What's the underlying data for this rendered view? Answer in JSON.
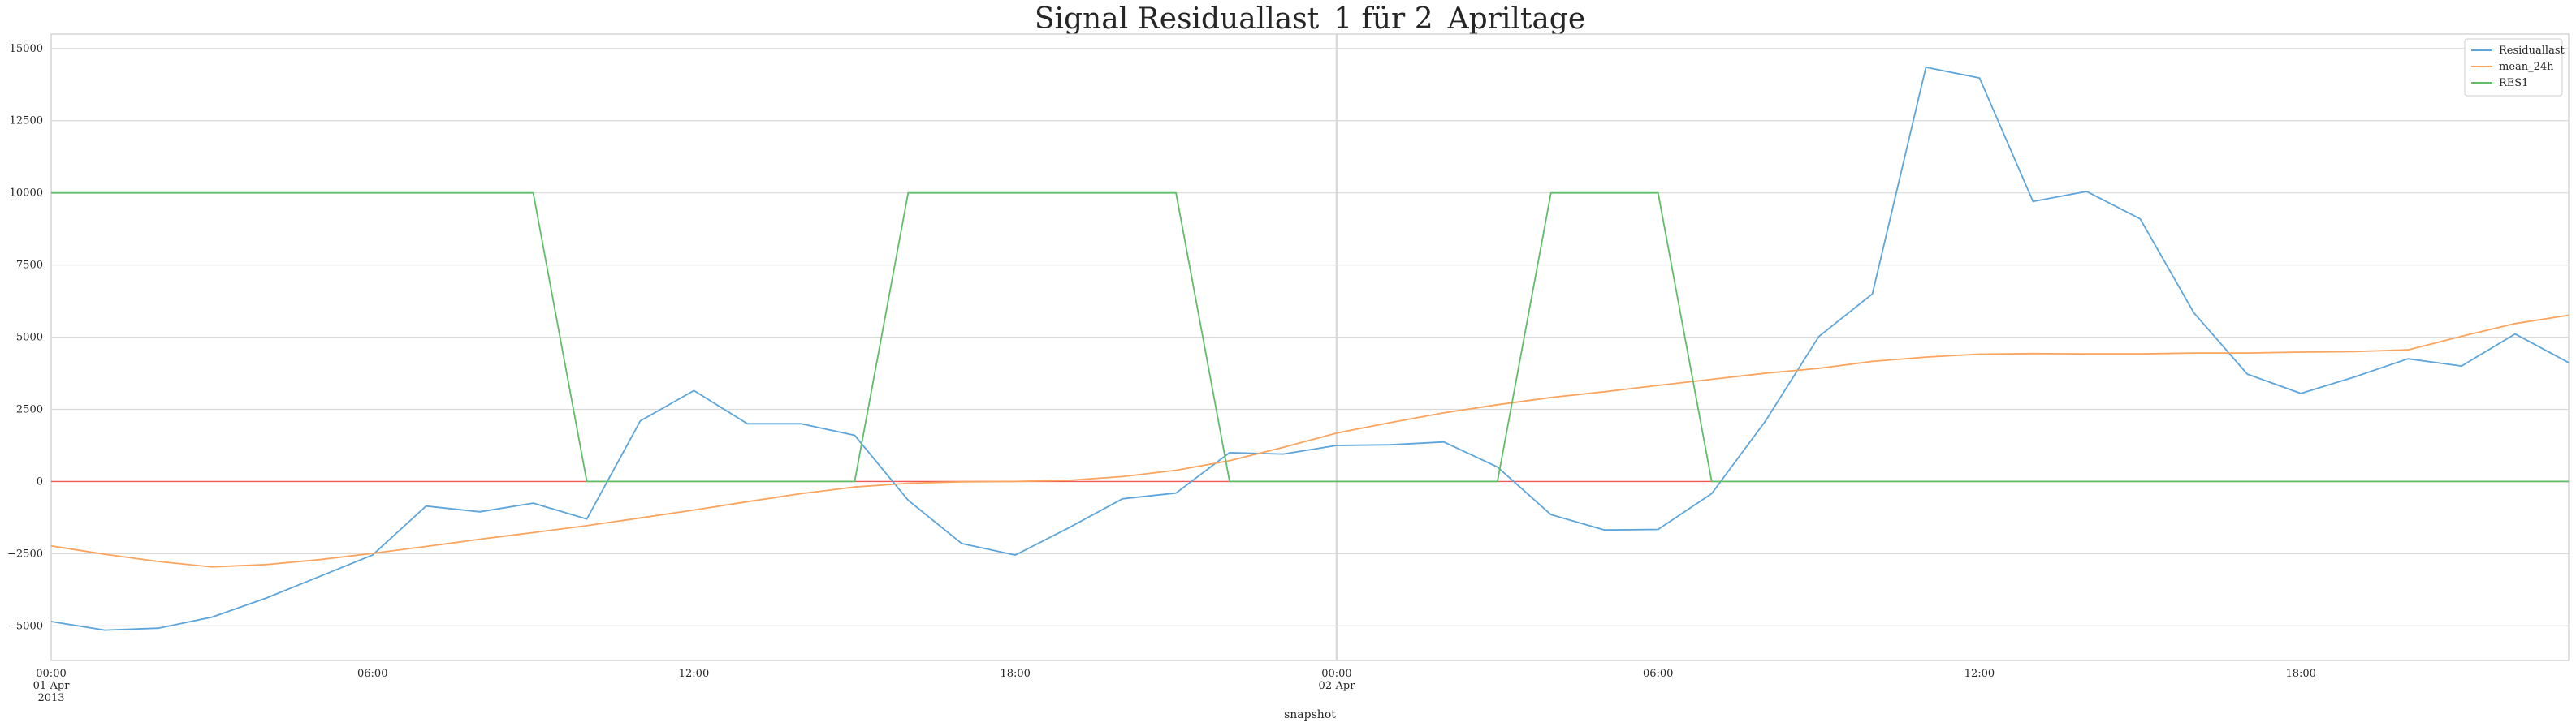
{
  "chart_data": {
    "type": "line",
    "title": "Signal Residuallast_1 für 2_Apriltage",
    "xlabel": "snapshot",
    "ylabel": "",
    "x": [
      "2013-04-01 00:00",
      "2013-04-01 01:00",
      "2013-04-01 02:00",
      "2013-04-01 03:00",
      "2013-04-01 04:00",
      "2013-04-01 05:00",
      "2013-04-01 06:00",
      "2013-04-01 07:00",
      "2013-04-01 08:00",
      "2013-04-01 09:00",
      "2013-04-01 10:00",
      "2013-04-01 11:00",
      "2013-04-01 12:00",
      "2013-04-01 13:00",
      "2013-04-01 14:00",
      "2013-04-01 15:00",
      "2013-04-01 16:00",
      "2013-04-01 17:00",
      "2013-04-01 18:00",
      "2013-04-01 19:00",
      "2013-04-01 20:00",
      "2013-04-01 21:00",
      "2013-04-01 22:00",
      "2013-04-01 23:00",
      "2013-04-02 00:00",
      "2013-04-02 01:00",
      "2013-04-02 02:00",
      "2013-04-02 03:00",
      "2013-04-02 04:00",
      "2013-04-02 05:00",
      "2013-04-02 06:00",
      "2013-04-02 07:00",
      "2013-04-02 08:00",
      "2013-04-02 09:00",
      "2013-04-02 10:00",
      "2013-04-02 11:00",
      "2013-04-02 12:00",
      "2013-04-02 13:00",
      "2013-04-02 14:00",
      "2013-04-02 15:00",
      "2013-04-02 16:00",
      "2013-04-02 17:00",
      "2013-04-02 18:00",
      "2013-04-02 19:00",
      "2013-04-02 20:00",
      "2013-04-02 21:00",
      "2013-04-02 22:00",
      "2013-04-02 23:00"
    ],
    "xlim": [
      "2013-04-01 00:00",
      "2013-04-02 23:00"
    ],
    "ylim": [
      -6200,
      15500
    ],
    "yticks": [
      -5000,
      -2500,
      0,
      2500,
      5000,
      7500,
      10000,
      12500,
      15000
    ],
    "ytick_labels": [
      "−5000",
      "−2500",
      "0",
      "2500",
      "5000",
      "7500",
      "10000",
      "12500",
      "15000"
    ],
    "xticks": [
      {
        "at": "2013-04-01 00:00",
        "lines": [
          "00:00",
          "01-Apr",
          "2013"
        ]
      },
      {
        "at": "2013-04-01 06:00",
        "lines": [
          "06:00"
        ]
      },
      {
        "at": "2013-04-01 12:00",
        "lines": [
          "12:00"
        ]
      },
      {
        "at": "2013-04-01 18:00",
        "lines": [
          "18:00"
        ]
      },
      {
        "at": "2013-04-02 00:00",
        "lines": [
          "00:00",
          "02-Apr"
        ]
      },
      {
        "at": "2013-04-02 06:00",
        "lines": [
          "06:00"
        ]
      },
      {
        "at": "2013-04-02 12:00",
        "lines": [
          "12:00"
        ]
      },
      {
        "at": "2013-04-02 18:00",
        "lines": [
          "18:00"
        ]
      }
    ],
    "grid": true,
    "legend": "top-right",
    "series": [
      {
        "name": "Residuallast",
        "color": "#5da5da",
        "values": [
          -4850,
          -5150,
          -5080,
          -4700,
          -4050,
          -3300,
          -2550,
          -850,
          -1050,
          -750,
          -1300,
          2100,
          3150,
          2000,
          2000,
          1600,
          -650,
          -2150,
          -2550,
          -1600,
          -600,
          -400,
          1000,
          950,
          1250,
          1270,
          1370,
          500,
          -1150,
          -1680,
          -1660,
          -420,
          2080,
          5020,
          6500,
          14350,
          13980,
          9700,
          10050,
          9100,
          5850,
          3720,
          3050,
          3620,
          4250,
          4000,
          5110,
          4120
        ]
      },
      {
        "name": "mean_24h",
        "color": "#faa45e",
        "values": [
          -2230,
          -2520,
          -2770,
          -2960,
          -2880,
          -2710,
          -2490,
          -2250,
          -2000,
          -1770,
          -1530,
          -1260,
          -990,
          -700,
          -420,
          -190,
          -60,
          -10,
          0,
          40,
          170,
          390,
          720,
          1180,
          1680,
          2040,
          2380,
          2660,
          2910,
          3110,
          3330,
          3540,
          3750,
          3920,
          4160,
          4310,
          4410,
          4430,
          4420,
          4420,
          4450,
          4450,
          4480,
          4500,
          4560,
          5030,
          5470,
          5760
        ]
      },
      {
        "name": "RES1",
        "color": "#60bd68",
        "values": [
          10000,
          10000,
          10000,
          10000,
          10000,
          10000,
          10000,
          10000,
          10000,
          10000,
          0,
          0,
          0,
          0,
          0,
          0,
          10000,
          10000,
          10000,
          10000,
          10000,
          10000,
          0,
          0,
          0,
          0,
          0,
          0,
          10000,
          10000,
          10000,
          0,
          0,
          0,
          0,
          0,
          0,
          0,
          0,
          0,
          0,
          0,
          0,
          0,
          0,
          0,
          0,
          0
        ]
      }
    ],
    "zero_line_color": "#f15854"
  }
}
